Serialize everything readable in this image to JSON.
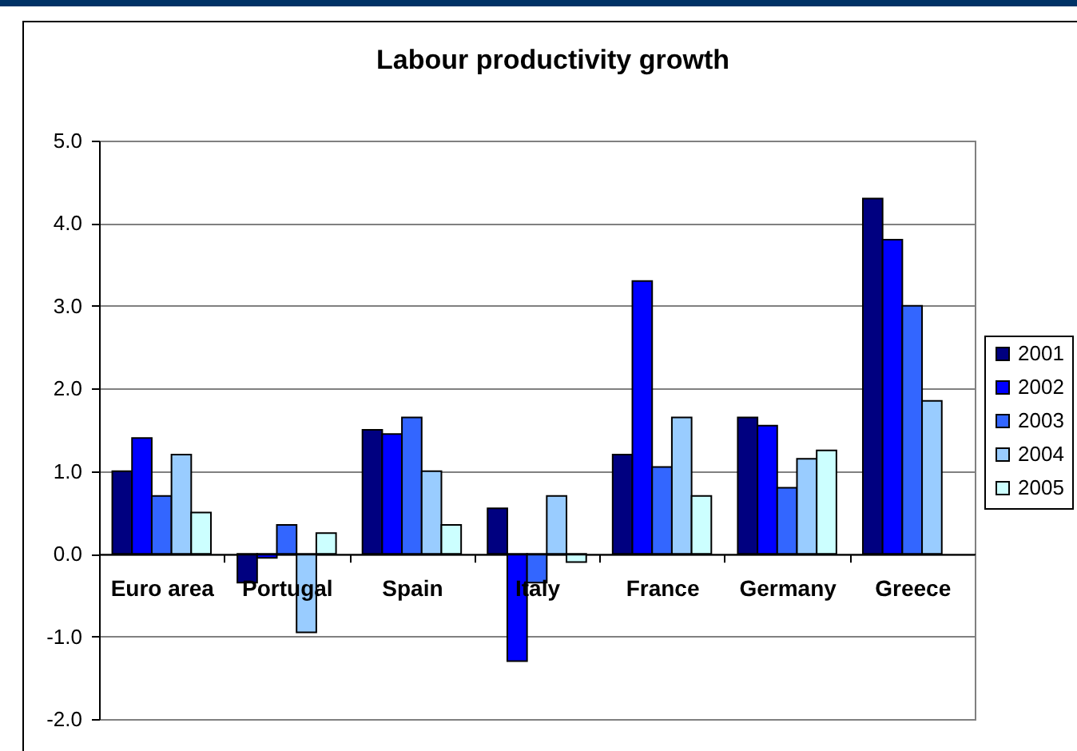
{
  "chart_data": {
    "type": "bar",
    "title": "Labour productivity growth",
    "categories": [
      "Euro area",
      "Portugal",
      "Spain",
      "Italy",
      "France",
      "Germany",
      "Greece"
    ],
    "series": [
      {
        "name": "2001",
        "color": "#000080",
        "values": [
          1.0,
          -0.35,
          1.5,
          0.55,
          1.2,
          1.65,
          4.3
        ]
      },
      {
        "name": "2002",
        "color": "#0000ff",
        "values": [
          1.4,
          -0.05,
          1.45,
          -1.3,
          3.3,
          1.55,
          3.8
        ]
      },
      {
        "name": "2003",
        "color": "#3366ff",
        "values": [
          0.7,
          0.35,
          1.65,
          -0.35,
          1.05,
          0.8,
          3.0
        ]
      },
      {
        "name": "2004",
        "color": "#99ccff",
        "values": [
          1.2,
          -0.95,
          1.0,
          0.7,
          1.65,
          1.15,
          1.85
        ]
      },
      {
        "name": "2005",
        "color": "#ccffff",
        "values": [
          0.5,
          0.25,
          0.35,
          -0.1,
          0.7,
          1.25,
          null
        ]
      }
    ],
    "ylim": [
      -2,
      5
    ],
    "yticks": [
      {
        "value": -2,
        "label": "-2.0"
      },
      {
        "value": -1,
        "label": "-1.0"
      },
      {
        "value": 0,
        "label": "0.0"
      },
      {
        "value": 1,
        "label": "1.0"
      },
      {
        "value": 2,
        "label": "2.0"
      },
      {
        "value": 3,
        "label": "3.0"
      },
      {
        "value": 4,
        "label": "4.0"
      },
      {
        "value": 5,
        "label": "5.0"
      }
    ],
    "grid": "y",
    "legend": "right"
  }
}
